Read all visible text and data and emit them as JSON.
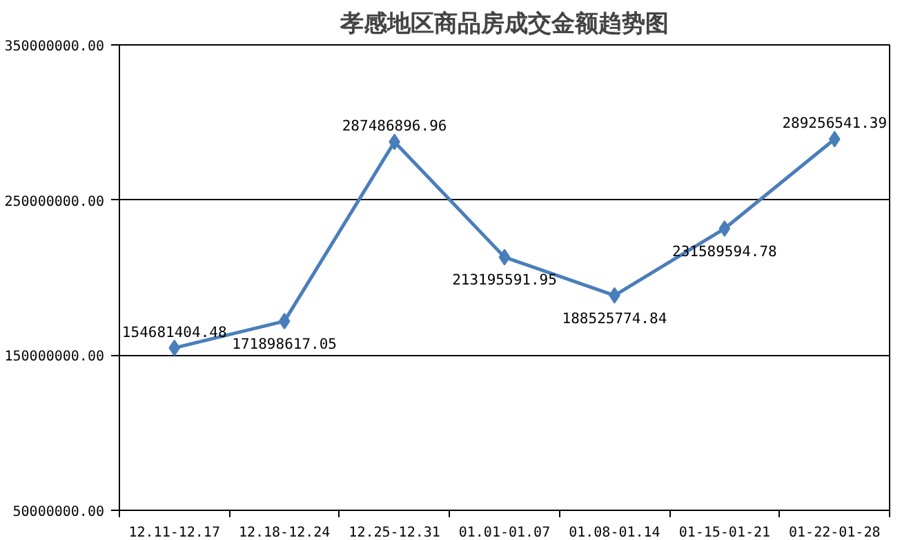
{
  "chart_data": {
    "type": "line",
    "title": "孝感地区商品房成交金额趋势图",
    "categories": [
      "12.11-12.17",
      "12.18-12.24",
      "12.25-12.31",
      "01.01-01.07",
      "01.08-01.14",
      "01-15-01-21",
      "01-22-01-28"
    ],
    "series": [
      {
        "color": "#4a7ebb",
        "values": [
          154681404.48,
          171898617.05,
          287486896.96,
          213195591.95,
          188525774.84,
          231589594.78,
          289256541.39
        ]
      }
    ],
    "ylim": [
      50000000,
      350000000
    ],
    "yticks": [
      {
        "value": 50000000,
        "label": "50000000.00"
      },
      {
        "value": 150000000,
        "label": "150000000.00"
      },
      {
        "value": 250000000,
        "label": "250000000.00"
      },
      {
        "value": 350000000,
        "label": "350000000.00"
      }
    ],
    "grid": "y",
    "marker": "diamond",
    "line_style": "solid",
    "data_labels": true
  }
}
